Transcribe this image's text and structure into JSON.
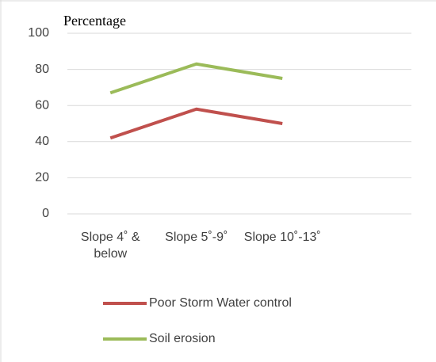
{
  "chart_data": {
    "type": "line",
    "title": "Percentage",
    "categories": [
      "Slope 4˚ & below",
      "Slope 5˚-9˚",
      "Slope 10˚-13˚",
      null
    ],
    "series": [
      {
        "name": "Poor Storm Water control",
        "color": "#c0504d",
        "values": [
          42,
          58,
          50,
          null
        ]
      },
      {
        "name": "Soil erosion",
        "color": "#9bbb59",
        "values": [
          67,
          83,
          75,
          null
        ]
      }
    ],
    "ylim": [
      0,
      100
    ],
    "yticks": [
      0,
      20,
      40,
      60,
      80,
      100
    ],
    "grid": true,
    "legend": "bottom"
  }
}
